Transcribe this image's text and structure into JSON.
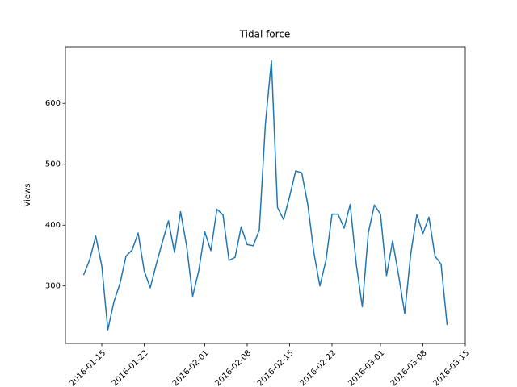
{
  "chart_data": {
    "type": "line",
    "title": "Tidal force",
    "y_label": "Views",
    "x": [
      "2016-01-12",
      "2016-01-13",
      "2016-01-14",
      "2016-01-15",
      "2016-01-16",
      "2016-01-17",
      "2016-01-18",
      "2016-01-19",
      "2016-01-20",
      "2016-01-21",
      "2016-01-22",
      "2016-01-23",
      "2016-01-24",
      "2016-01-25",
      "2016-01-26",
      "2016-01-27",
      "2016-01-28",
      "2016-01-29",
      "2016-01-30",
      "2016-01-31",
      "2016-02-01",
      "2016-02-02",
      "2016-02-03",
      "2016-02-04",
      "2016-02-05",
      "2016-02-06",
      "2016-02-07",
      "2016-02-08",
      "2016-02-09",
      "2016-02-10",
      "2016-02-11",
      "2016-02-12",
      "2016-02-13",
      "2016-02-14",
      "2016-02-15",
      "2016-02-16",
      "2016-02-17",
      "2016-02-18",
      "2016-02-19",
      "2016-02-20",
      "2016-02-21",
      "2016-02-22",
      "2016-02-23",
      "2016-02-24",
      "2016-02-25",
      "2016-02-26",
      "2016-02-27",
      "2016-02-28",
      "2016-02-29",
      "2016-03-01",
      "2016-03-02",
      "2016-03-03",
      "2016-03-04",
      "2016-03-05",
      "2016-03-06",
      "2016-03-07",
      "2016-03-08",
      "2016-03-09",
      "2016-03-10",
      "2016-03-11",
      "2016-03-12"
    ],
    "series": [
      {
        "name": "Views",
        "color": "#1f77b4",
        "values": [
          318,
          343,
          382,
          333,
          228,
          274,
          304,
          349,
          359,
          387,
          325,
          297,
          336,
          372,
          407,
          355,
          422,
          366,
          283,
          325,
          389,
          358,
          426,
          417,
          342,
          347,
          397,
          368,
          366,
          392,
          566,
          670,
          429,
          409,
          447,
          489,
          486,
          434,
          355,
          300,
          342,
          418,
          418,
          395,
          434,
          336,
          266,
          388,
          433,
          418,
          317,
          374,
          317,
          255,
          353,
          417,
          386,
          413,
          349,
          336,
          236
        ]
      }
    ],
    "xlim": [
      "2016-01-09",
      "2016-03-15"
    ],
    "xticks": [
      "2016-01-15",
      "2016-01-22",
      "2016-02-01",
      "2016-02-08",
      "2016-02-15",
      "2016-02-22",
      "2016-03-01",
      "2016-03-08",
      "2016-03-15"
    ],
    "ylim": [
      205.6,
      693
    ],
    "yticks": [
      300,
      400,
      500,
      600
    ],
    "grid": false
  }
}
